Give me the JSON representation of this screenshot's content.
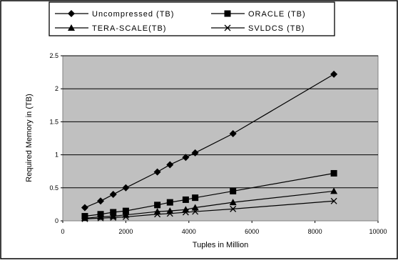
{
  "chart_data": {
    "type": "scatter",
    "title": "",
    "xlabel": "Tuples in Million",
    "ylabel": "Required Memory in (TB)",
    "xlim": [
      0,
      10000
    ],
    "ylim": [
      0,
      2.5
    ],
    "xticks": [
      "0",
      "2000",
      "4000",
      "6000",
      "8000",
      "10000"
    ],
    "yticks": [
      "0",
      "0.5",
      "1",
      "1.5",
      "2",
      "2.5"
    ],
    "grid": "horizontal",
    "legend_position": "top",
    "plot_background": "#c0c0c0",
    "series": [
      {
        "name": "Uncompressed (TB)",
        "marker": "diamond",
        "points": [
          [
            700,
            0.2
          ],
          [
            1200,
            0.3
          ],
          [
            1600,
            0.4
          ],
          [
            2000,
            0.5
          ],
          [
            3000,
            0.74
          ],
          [
            3400,
            0.85
          ],
          [
            3900,
            0.96
          ],
          [
            4200,
            1.03
          ],
          [
            5400,
            1.32
          ],
          [
            8600,
            2.22
          ]
        ]
      },
      {
        "name": "ORACLE (TB)",
        "marker": "square",
        "points": [
          [
            700,
            0.07
          ],
          [
            1200,
            0.1
          ],
          [
            1600,
            0.13
          ],
          [
            2000,
            0.15
          ],
          [
            3000,
            0.24
          ],
          [
            3400,
            0.28
          ],
          [
            3900,
            0.32
          ],
          [
            4200,
            0.35
          ],
          [
            5400,
            0.45
          ],
          [
            8600,
            0.72
          ]
        ]
      },
      {
        "name": "TERA-SCALE(TB)",
        "marker": "triangle",
        "points": [
          [
            700,
            0.04
          ],
          [
            1200,
            0.06
          ],
          [
            1600,
            0.07
          ],
          [
            2000,
            0.09
          ],
          [
            3000,
            0.14
          ],
          [
            3400,
            0.15
          ],
          [
            3900,
            0.17
          ],
          [
            4200,
            0.2
          ],
          [
            5400,
            0.28
          ],
          [
            8600,
            0.45
          ]
        ]
      },
      {
        "name": "SVLDCS (TB)",
        "marker": "x",
        "points": [
          [
            700,
            0.03
          ],
          [
            1200,
            0.04
          ],
          [
            1600,
            0.05
          ],
          [
            2000,
            0.06
          ],
          [
            3000,
            0.1
          ],
          [
            3400,
            0.11
          ],
          [
            3900,
            0.13
          ],
          [
            4200,
            0.14
          ],
          [
            5400,
            0.18
          ],
          [
            8600,
            0.3
          ]
        ]
      }
    ]
  }
}
